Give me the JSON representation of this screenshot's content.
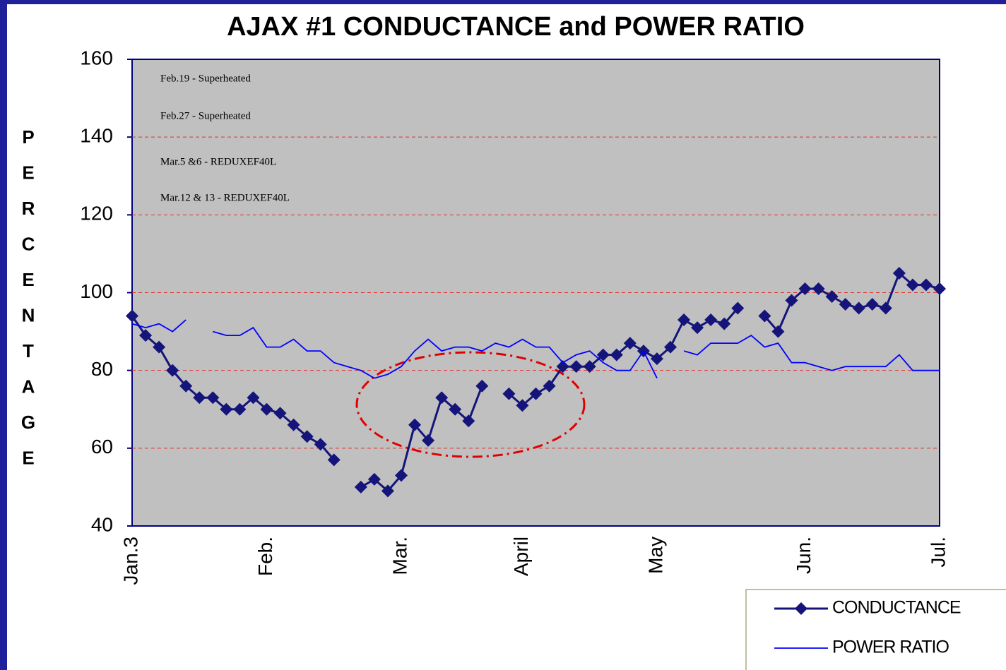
{
  "chart_data": {
    "type": "line",
    "title": "AJAX #1 CONDUCTANCE and POWER RATIO",
    "y_label": "PERCENTAGE",
    "annotations": [
      "Feb.19 - Superheated",
      "Feb.27 - Superheated",
      "Mar.5 &6 - REDUXEF40L",
      "Mar.12 & 13 - REDUXEF40L"
    ],
    "categories": [
      "Jan.3",
      null,
      null,
      null,
      null,
      null,
      null,
      null,
      null,
      null,
      "Feb.",
      null,
      null,
      null,
      null,
      null,
      null,
      null,
      null,
      null,
      "Mar.",
      null,
      null,
      null,
      null,
      null,
      null,
      null,
      null,
      "April",
      null,
      null,
      null,
      null,
      null,
      null,
      null,
      null,
      null,
      "May",
      null,
      null,
      null,
      null,
      null,
      null,
      null,
      null,
      null,
      null,
      "Jun.",
      null,
      null,
      null,
      null,
      null,
      null,
      null,
      null,
      null,
      "Jul."
    ],
    "series": [
      {
        "name": "CONDUCTANCE",
        "color": "#14147a",
        "marker": "diamond",
        "values": [
          94,
          89,
          86,
          80,
          76,
          73,
          73,
          70,
          70,
          73,
          70,
          69,
          66,
          63,
          61,
          57,
          null,
          50,
          52,
          49,
          53,
          66,
          62,
          73,
          70,
          67,
          76,
          null,
          74,
          71,
          74,
          76,
          81,
          81,
          81,
          84,
          84,
          87,
          85,
          83,
          86,
          93,
          91,
          93,
          92,
          96,
          null,
          94,
          90,
          98,
          101,
          101,
          99,
          97,
          96,
          97,
          96,
          105,
          102,
          102,
          101
        ]
      },
      {
        "name": "POWER RATIO",
        "color": "#0000ff",
        "values": [
          92,
          91,
          92,
          90,
          93,
          null,
          90,
          89,
          89,
          91,
          86,
          86,
          88,
          85,
          85,
          82,
          81,
          80,
          78,
          79,
          81,
          85,
          88,
          85,
          86,
          86,
          85,
          87,
          86,
          88,
          86,
          86,
          82,
          84,
          85,
          82,
          80,
          80,
          85,
          78,
          null,
          85,
          84,
          87,
          87,
          87,
          89,
          86,
          87,
          82,
          82,
          81,
          80,
          81,
          81,
          81,
          81,
          84,
          80,
          80,
          80
        ]
      }
    ],
    "ylim": [
      40,
      160
    ],
    "yticks": [
      40,
      60,
      80,
      100,
      120,
      140,
      160
    ],
    "grid": true
  }
}
